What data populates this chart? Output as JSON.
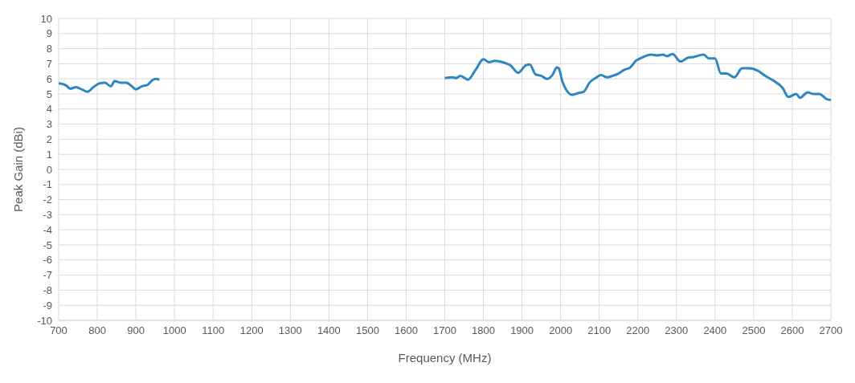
{
  "chart_data": {
    "type": "line",
    "xlabel": "Frequency (MHz)",
    "ylabel": "Peak Gain (dBi)",
    "x": [
      700,
      720,
      730,
      745,
      760,
      775,
      790,
      805,
      820,
      835,
      845,
      860,
      875,
      890,
      900,
      915,
      930,
      945,
      955,
      960,
      1330,
      1700,
      1720,
      1730,
      1740,
      1760,
      1780,
      1800,
      1815,
      1830,
      1850,
      1870,
      1890,
      1910,
      1920,
      1935,
      1950,
      1965,
      1980,
      1990,
      1995,
      2005,
      2030,
      2045,
      2060,
      2075,
      2090,
      2105,
      2120,
      2135,
      2150,
      2165,
      2180,
      2195,
      2210,
      2235,
      2250,
      2265,
      2275,
      2290,
      2310,
      2330,
      2345,
      2370,
      2385,
      2400,
      2415,
      2430,
      2450,
      2470,
      2490,
      2510,
      2530,
      2550,
      2575,
      2590,
      2610,
      2620,
      2640,
      2655,
      2670,
      2690,
      2700
    ],
    "series": [
      {
        "color": "#2e86c1",
        "values": [
          5.7,
          5.55,
          5.35,
          5.45,
          5.3,
          5.15,
          5.45,
          5.7,
          5.75,
          5.5,
          5.85,
          5.75,
          5.75,
          5.5,
          5.3,
          5.5,
          5.6,
          5.95,
          6.0,
          5.9,
          null,
          6.05,
          6.1,
          6.05,
          6.2,
          5.95,
          6.6,
          7.3,
          7.1,
          7.2,
          7.1,
          6.9,
          6.4,
          6.9,
          6.95,
          6.3,
          6.2,
          6.0,
          6.3,
          6.75,
          6.7,
          5.8,
          4.95,
          5.05,
          5.15,
          5.75,
          6.05,
          6.25,
          6.1,
          6.2,
          6.35,
          6.6,
          6.75,
          7.2,
          7.4,
          7.6,
          7.55,
          7.6,
          7.5,
          7.65,
          7.15,
          7.4,
          7.45,
          7.6,
          7.35,
          7.35,
          6.35,
          6.35,
          6.1,
          6.7,
          6.7,
          6.55,
          6.2,
          5.9,
          5.4,
          4.8,
          5.0,
          4.75,
          5.1,
          5.0,
          5.0,
          4.65,
          4.6
        ]
      }
    ],
    "xlim": [
      700,
      2700
    ],
    "xticks": [
      700,
      800,
      900,
      1000,
      1100,
      1200,
      1300,
      1400,
      1500,
      1600,
      1700,
      1800,
      1900,
      2000,
      2100,
      2200,
      2300,
      2400,
      2500,
      2600,
      2700
    ],
    "ylim": [
      -10,
      10
    ],
    "yticks": [
      -10,
      -9,
      -8,
      -7,
      -6,
      -5,
      -4,
      -3,
      -2,
      -1,
      0,
      1,
      2,
      3,
      4,
      5,
      6,
      7,
      8,
      9,
      10
    ],
    "grid": true,
    "legend": false,
    "marker": "none",
    "line_style": "solid"
  }
}
